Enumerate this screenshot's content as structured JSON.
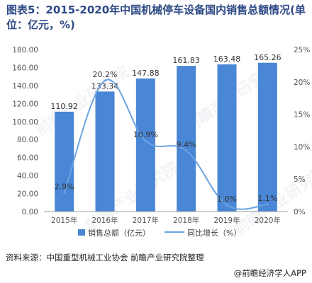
{
  "title": "图表5：2015-2020年中国机械停车设备国内销售总额情况(单位：亿元，%)",
  "source": "资料来源：中国重型机械工业协会 前瞻产业研究院整理",
  "brand": "@前瞻经济学人APP",
  "watermark": "前瞻产业研究院",
  "colors": {
    "bar": "#4a86d6",
    "line": "#6aa3e0",
    "axis": "#9a9a9a",
    "title": "#2e4a86"
  },
  "chart_data": {
    "type": "bar",
    "categories": [
      "2015年",
      "2016年",
      "2017年",
      "2018年",
      "2019年",
      "2020年"
    ],
    "series": [
      {
        "name": "销售总额（亿元）",
        "type": "bar",
        "axis": "left",
        "values": [
          110.92,
          133.34,
          147.88,
          161.83,
          163.48,
          165.26
        ]
      },
      {
        "name": "同比增长（%）",
        "type": "line",
        "axis": "right",
        "values": [
          2.9,
          20.2,
          10.9,
          9.4,
          1.0,
          1.1
        ]
      }
    ],
    "data_labels_bar": [
      "110.92",
      "133.34",
      "147.88",
      "161.83",
      "163.48",
      "165.26"
    ],
    "data_labels_line": [
      "2.9%",
      "20.2%",
      "10.9%",
      "9.4%",
      "1.0%",
      "1.1%"
    ],
    "y_left": {
      "min": 0,
      "max": 180,
      "step": 20,
      "ticks": [
        "0.00",
        "20.00",
        "40.00",
        "60.00",
        "80.00",
        "100.00",
        "120.00",
        "140.00",
        "160.00",
        "180.00"
      ]
    },
    "y_right": {
      "min": 0,
      "max": 25,
      "step": 5,
      "ticks": [
        "0%",
        "5%",
        "10%",
        "15%",
        "20%",
        "25%"
      ]
    },
    "legend_position": "bottom",
    "grid": false
  }
}
